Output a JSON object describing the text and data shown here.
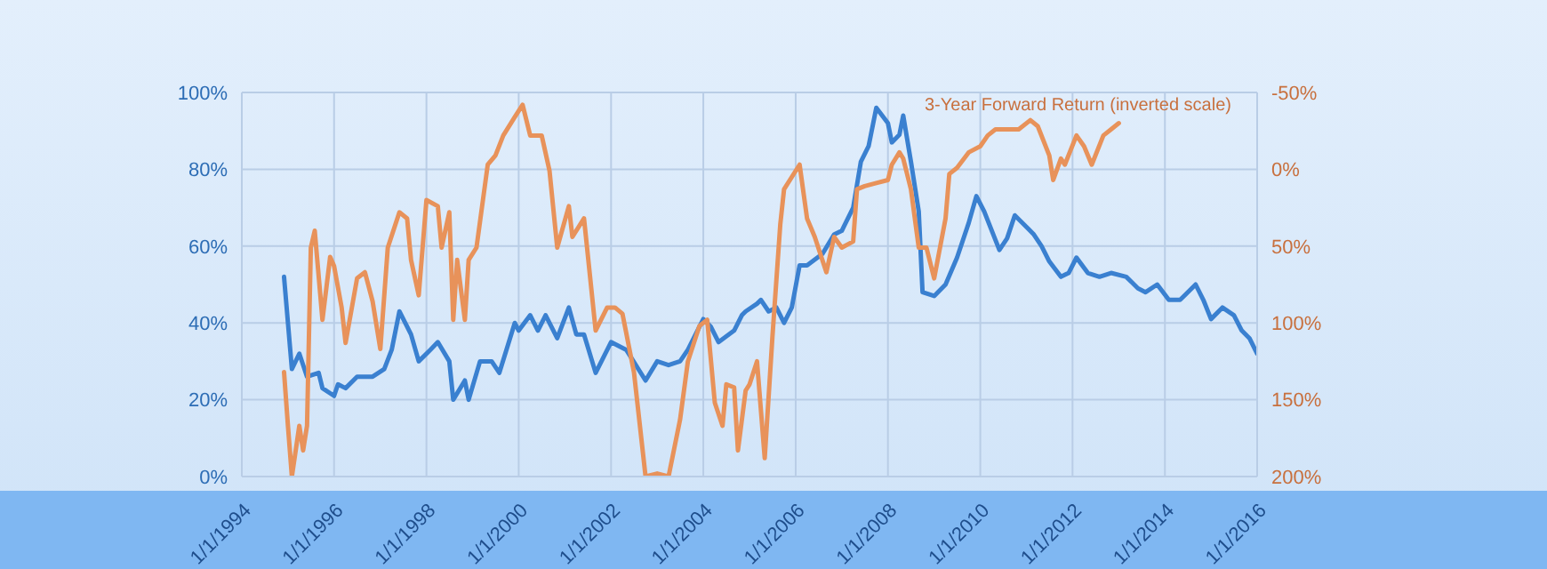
{
  "chart_data": {
    "type": "line",
    "legend": false,
    "grid": true,
    "marker": "none",
    "line_style": "solid",
    "xlim": [
      "1994-01-01",
      "2016-01-01"
    ],
    "xticks": [
      {
        "value": "1994-01-01",
        "label": "1/1/1994"
      },
      {
        "value": "1996-01-01",
        "label": "1/1/1996"
      },
      {
        "value": "1998-01-01",
        "label": "1/1/1998"
      },
      {
        "value": "2000-01-01",
        "label": "1/1/2000"
      },
      {
        "value": "2002-01-01",
        "label": "1/1/2002"
      },
      {
        "value": "2004-01-01",
        "label": "1/1/2004"
      },
      {
        "value": "2006-01-01",
        "label": "1/1/2006"
      },
      {
        "value": "2008-01-01",
        "label": "1/1/2008"
      },
      {
        "value": "2010-01-01",
        "label": "1/1/2010"
      },
      {
        "value": "2012-01-01",
        "label": "1/1/2012"
      },
      {
        "value": "2014-01-01",
        "label": "1/1/2014"
      },
      {
        "value": "2016-01-01",
        "label": "1/1/2016"
      }
    ],
    "ylim": [
      0,
      100
    ],
    "yticks": [
      {
        "value": 0,
        "label": "0%"
      },
      {
        "value": 20,
        "label": "20%"
      },
      {
        "value": 40,
        "label": "40%"
      },
      {
        "value": 60,
        "label": "60%"
      },
      {
        "value": 80,
        "label": "80%"
      },
      {
        "value": 100,
        "label": "100%"
      }
    ],
    "y2lim": [
      200,
      -50
    ],
    "y2ticks": [
      {
        "value": -50,
        "label": "-50%"
      },
      {
        "value": 0,
        "label": "0%"
      },
      {
        "value": 50,
        "label": "50%"
      },
      {
        "value": 100,
        "label": "100%"
      },
      {
        "value": 150,
        "label": "150%"
      },
      {
        "value": 200,
        "label": "200%"
      }
    ],
    "series": [
      {
        "color": "#3a80d0",
        "x": [
          "1994-12",
          "1995-02",
          "1995-04",
          "1995-06",
          "1995-09",
          "1995-10",
          "1996-01",
          "1996-02",
          "1996-04",
          "1996-07",
          "1996-11",
          "1997-02",
          "1997-04",
          "1997-06",
          "1997-09",
          "1997-11",
          "1998-02",
          "1998-04",
          "1998-07",
          "1998-08",
          "1998-11",
          "1998-12",
          "1999-03",
          "1999-06",
          "1999-08",
          "1999-12",
          "2000-01",
          "2000-04",
          "2000-06",
          "2000-08",
          "2000-11",
          "2001-02",
          "2001-04",
          "2001-06",
          "2001-09",
          "2002-01",
          "2002-05",
          "2002-10",
          "2003-01",
          "2003-04",
          "2003-07",
          "2003-09",
          "2004-01",
          "2004-03",
          "2004-05",
          "2004-09",
          "2004-11",
          "2004-12",
          "2005-03",
          "2005-04",
          "2005-06",
          "2005-08",
          "2005-10",
          "2005-12",
          "2006-02",
          "2006-04",
          "2006-08",
          "2006-11",
          "2007-01",
          "2007-04",
          "2007-06",
          "2007-08",
          "2007-10",
          "2008-01",
          "2008-02",
          "2008-04",
          "2008-05",
          "2008-07",
          "2008-09",
          "2008-10",
          "2009-01",
          "2009-04",
          "2009-07",
          "2009-10",
          "2009-12",
          "2010-02",
          "2010-06",
          "2010-08",
          "2010-10",
          "2011-01",
          "2011-03",
          "2011-05",
          "2011-07",
          "2011-10",
          "2011-12",
          "2012-02",
          "2012-05",
          "2012-08",
          "2012-11",
          "2013-03",
          "2013-06",
          "2013-08",
          "2013-11",
          "2014-02",
          "2014-05",
          "2014-06",
          "2014-09",
          "2014-11",
          "2015-01",
          "2015-04",
          "2015-07",
          "2015-09",
          "2015-11",
          "2016-01"
        ],
        "values": [
          52,
          28,
          32,
          26,
          27,
          23,
          21,
          24,
          23,
          26,
          26,
          28,
          33,
          43,
          37,
          30,
          33,
          35,
          30,
          20,
          25,
          20,
          30,
          30,
          27,
          40,
          38,
          42,
          38,
          42,
          36,
          44,
          37,
          37,
          27,
          35,
          33,
          25,
          30,
          29,
          30,
          33,
          41,
          39,
          35,
          38,
          42,
          43,
          45,
          46,
          43,
          44,
          40,
          44,
          55,
          55,
          58,
          63,
          64,
          70,
          82,
          86,
          96,
          92,
          87,
          89,
          94,
          82,
          69,
          48,
          47,
          50,
          57,
          66,
          73,
          69,
          59,
          62,
          68,
          65,
          63,
          60,
          56,
          52,
          53,
          57,
          53,
          52,
          53,
          52,
          49,
          48,
          50,
          46,
          46,
          47,
          50,
          46,
          41,
          44,
          42,
          38,
          36,
          32
        ]
      },
      {
        "name": "3-Year Forward Return (inverted scale)",
        "color": "#e8925a",
        "axis": "y2",
        "x": [
          "1994-12",
          "1995-01",
          "1995-02",
          "1995-04",
          "1995-05",
          "1995-06",
          "1995-07",
          "1995-08",
          "1995-10",
          "1995-12",
          "1996-01",
          "1996-03",
          "1996-04",
          "1996-07",
          "1996-09",
          "1996-11",
          "1997-01",
          "1997-03",
          "1997-06",
          "1997-08",
          "1997-09",
          "1997-11",
          "1998-01",
          "1998-04",
          "1998-05",
          "1998-07",
          "1998-08",
          "1998-09",
          "1998-11",
          "1998-12",
          "1999-02",
          "1999-05",
          "1999-07",
          "1999-09",
          "1999-12",
          "2000-02",
          "2000-04",
          "2000-07",
          "2000-09",
          "2000-11",
          "2001-02",
          "2001-03",
          "2001-06",
          "2001-09",
          "2001-12",
          "2002-02",
          "2002-04",
          "2002-07",
          "2002-10",
          "2003-01",
          "2003-04",
          "2003-07",
          "2003-09",
          "2003-12",
          "2004-02",
          "2004-04",
          "2004-06",
          "2004-07",
          "2004-09",
          "2004-10",
          "2004-12",
          "2005-01",
          "2005-03",
          "2005-05",
          "2005-07",
          "2005-09",
          "2005-10",
          "2006-02",
          "2006-04",
          "2006-06",
          "2006-09",
          "2006-11",
          "2007-01",
          "2007-04",
          "2007-05",
          "2007-07",
          "2007-10",
          "2008-01",
          "2008-02",
          "2008-04",
          "2008-05",
          "2008-07",
          "2008-09",
          "2008-11",
          "2009-01",
          "2009-04",
          "2009-05",
          "2009-07",
          "2009-10",
          "2010-01",
          "2010-03",
          "2010-05",
          "2010-08",
          "2010-11",
          "2011-02",
          "2011-04",
          "2011-07",
          "2011-08",
          "2011-10",
          "2011-11",
          "2012-02",
          "2012-04",
          "2012-06",
          "2012-09",
          "2012-11",
          "2013-01"
        ],
        "values": [
          132,
          167,
          200,
          167,
          183,
          167,
          51,
          40,
          98,
          57,
          63,
          90,
          113,
          71,
          67,
          86,
          117,
          51,
          28,
          32,
          59,
          82,
          20,
          24,
          51,
          28,
          98,
          59,
          98,
          59,
          51,
          -3,
          -9,
          -22,
          -34,
          -42,
          -22,
          -22,
          1,
          51,
          24,
          44,
          32,
          105,
          90,
          90,
          94,
          132,
          200,
          198,
          200,
          163,
          125,
          102,
          98,
          152,
          167,
          140,
          142,
          183,
          144,
          140,
          125,
          188,
          109,
          36,
          13,
          -3,
          32,
          44,
          67,
          44,
          51,
          47,
          13,
          11,
          9,
          7,
          -3,
          -11,
          -7,
          13,
          51,
          51,
          71,
          32,
          3,
          -1,
          -11,
          -15,
          -22,
          -26,
          -26,
          -26,
          -32,
          -28,
          -9,
          7,
          -7,
          -3,
          -22,
          -15,
          -3,
          -22,
          -26,
          -30
        ]
      }
    ]
  }
}
